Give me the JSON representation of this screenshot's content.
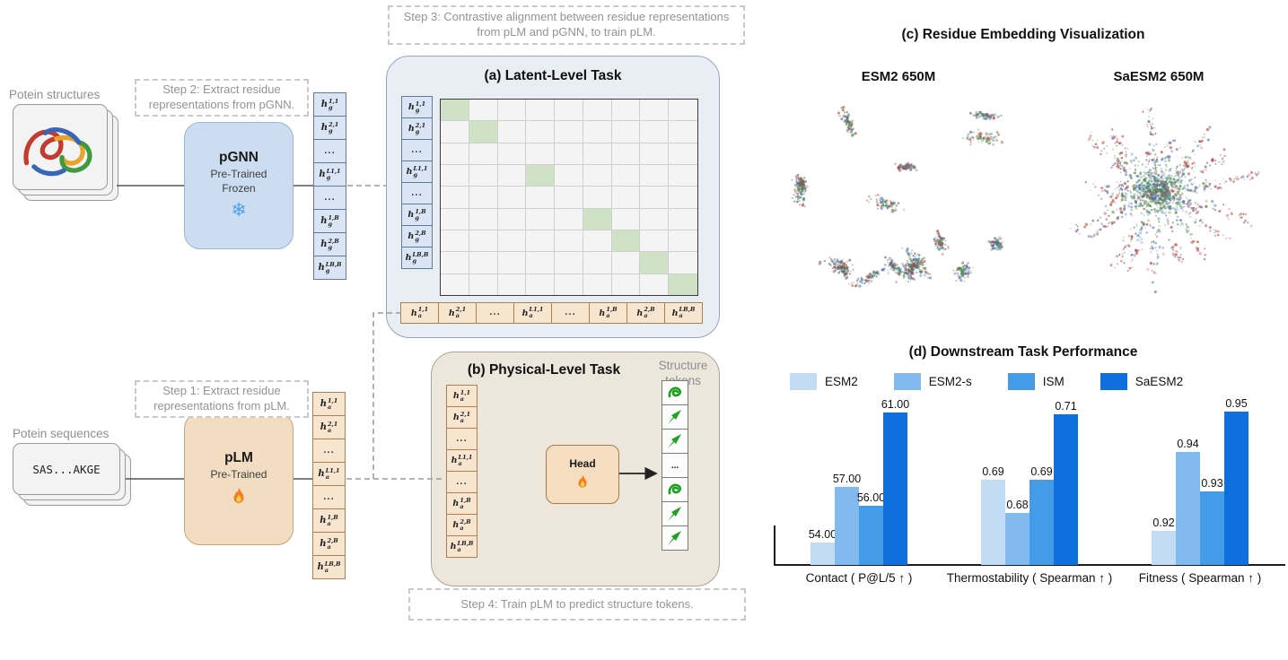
{
  "figure": {
    "steps": {
      "step1": "Step 1: Extract residue representations from pLM.",
      "step2": "Step 2: Extract residue representations from pGNN.",
      "step3": "Step 3: Contrastive alignment between residue representations from pLM and pGNN, to train pLM.",
      "step4": "Step 4: Train pLM to predict structure tokens."
    },
    "inputs": {
      "structures_label": "Potein structures",
      "sequences_label": "Potein sequences",
      "sequence_sample": "SAS...AKGE"
    },
    "pgnn": {
      "name": "pGNN",
      "line1": "Pre-Trained",
      "line2": "Frozen",
      "icon": "snowflake-icon",
      "snowflake_char": "❄"
    },
    "plm": {
      "name": "pLM",
      "line1": "Pre-Trained",
      "icon": "flame-icon"
    },
    "tokens_g": [
      {
        "base": "h",
        "sub": "g",
        "sup": "1,1"
      },
      {
        "base": "h",
        "sub": "g",
        "sup": "2,1"
      },
      {
        "dots": "..."
      },
      {
        "base": "h",
        "sub": "g",
        "sup": "L1,1"
      },
      {
        "dots": "..."
      },
      {
        "base": "h",
        "sub": "g",
        "sup": "1,B"
      },
      {
        "base": "h",
        "sub": "g",
        "sup": "2,B"
      },
      {
        "base": "h",
        "sub": "g",
        "sup": "LB,B"
      }
    ],
    "tokens_a": [
      {
        "base": "h",
        "sub": "a",
        "sup": "1,1"
      },
      {
        "base": "h",
        "sub": "a",
        "sup": "2,1"
      },
      {
        "dots": "..."
      },
      {
        "base": "h",
        "sub": "a",
        "sup": "L1,1"
      },
      {
        "dots": "..."
      },
      {
        "base": "h",
        "sub": "a",
        "sup": "1,B"
      },
      {
        "base": "h",
        "sub": "a",
        "sup": "2,B"
      },
      {
        "base": "h",
        "sub": "a",
        "sup": "LB,B"
      }
    ],
    "panel_a": {
      "title": "(a) Latent-Level Task",
      "matrix_size": 9,
      "green_cells": [
        0,
        1,
        3,
        5,
        6,
        7,
        8
      ]
    },
    "panel_b": {
      "title": "(b) Physical-Level Task",
      "structure_tokens_label": "Structure tokens",
      "head_label": "Head",
      "head_icon": "flame-icon",
      "token_icons": [
        "ribbon",
        "arrow",
        "arrow",
        "dots",
        "ribbon",
        "arrow",
        "arrow"
      ]
    },
    "panel_c": {
      "title": "(c) Residue Embedding Visualization",
      "left_label": "ESM2 650M",
      "right_label": "SaESM2 650M"
    },
    "panel_d": {
      "title": "(d) Downstream Task Performance"
    }
  },
  "chart_data": {
    "type": "bar",
    "title": "(d) Downstream Task Performance",
    "categories": [
      "Contact ( P@L/5 ↑ )",
      "Thermostability ( Spearman ↑ )",
      "Fitness ( Spearman ↑ )"
    ],
    "series": [
      {
        "name": "ESM2",
        "color": "#c3dcf5",
        "values": [
          54.0,
          0.69,
          0.92
        ]
      },
      {
        "name": "ESM2-s",
        "color": "#82b9ee",
        "values": [
          57.0,
          0.68,
          0.94
        ]
      },
      {
        "name": "ISM",
        "color": "#449be8",
        "values": [
          56.0,
          0.69,
          0.93
        ]
      },
      {
        "name": "SaESM2",
        "color": "#0f6fdd",
        "values": [
          61.0,
          0.71,
          0.95
        ]
      }
    ],
    "value_labels": [
      [
        "54.00",
        "57.00",
        "56.00",
        "61.00"
      ],
      [
        "0.69",
        "0.68",
        "0.69",
        "0.71"
      ],
      [
        "0.92",
        "0.94",
        "0.93",
        "0.95"
      ]
    ],
    "group_scale": {
      "baselines": [
        52.8,
        0.664,
        0.9115
      ],
      "tops": [
        62.2,
        0.7175,
        0.9555
      ]
    },
    "legend_position": "top",
    "grid": false,
    "scatter_colors": {
      "red": "#b23a33",
      "blue": "#4a6fae",
      "green": "#4c8f44"
    }
  }
}
